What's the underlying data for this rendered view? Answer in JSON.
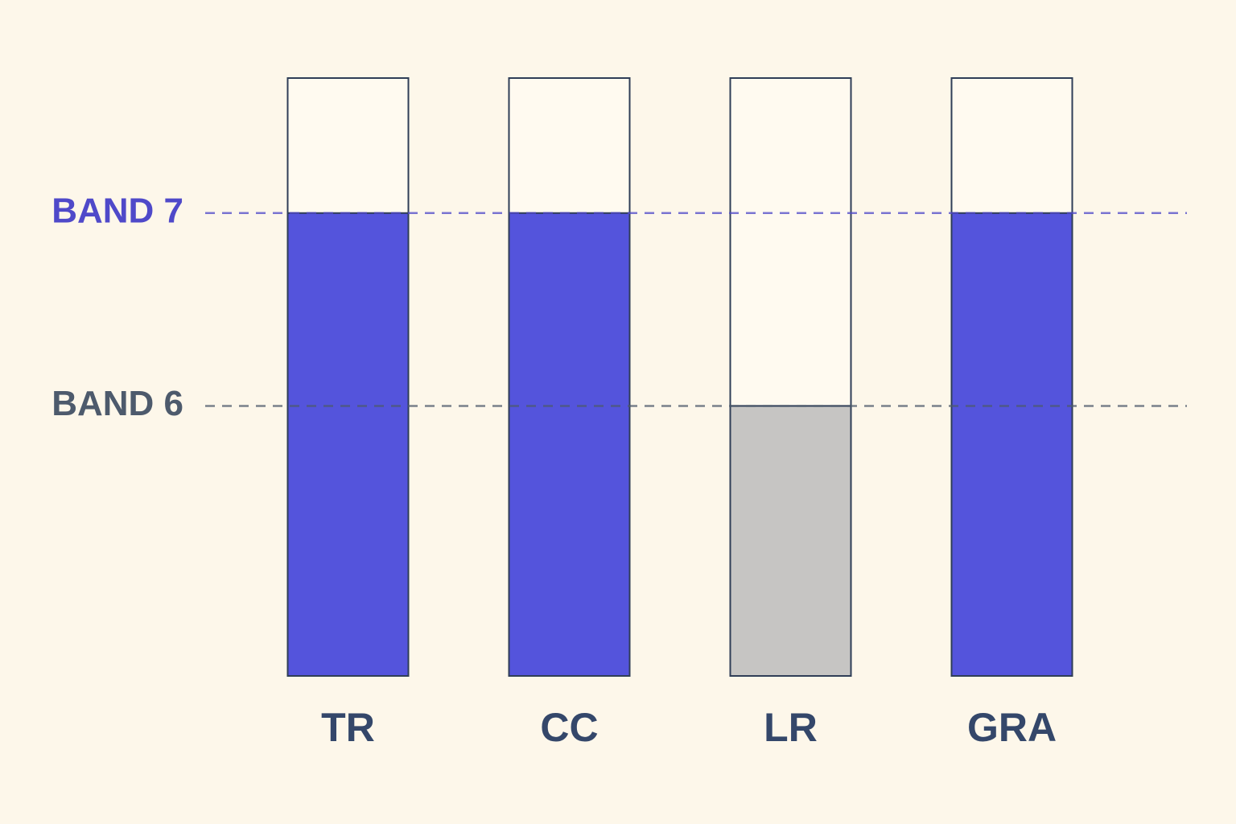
{
  "chart_data": {
    "type": "bar",
    "categories": [
      "TR",
      "CC",
      "LR",
      "GRA"
    ],
    "values": [
      7,
      7,
      6,
      7
    ],
    "colors": [
      "#5454dc",
      "#5454dc",
      "#c6c5c3",
      "#5454dc"
    ],
    "ylim": [
      4.6,
      7.7
    ],
    "reference_lines": [
      {
        "value": 7,
        "label": "BAND 7",
        "color": "#4f49c9"
      },
      {
        "value": 6,
        "label": "BAND 6",
        "color": "#4d5a6c"
      }
    ]
  }
}
